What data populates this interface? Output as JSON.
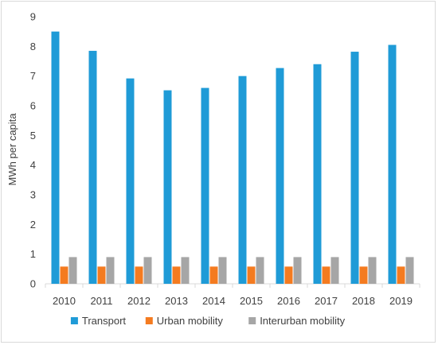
{
  "chart_data": {
    "type": "bar",
    "title": "",
    "xlabel": "",
    "ylabel": "MWh per capita",
    "ylim": [
      0,
      9
    ],
    "yticks": [
      "0",
      "1",
      "2",
      "3",
      "4",
      "5",
      "6",
      "7",
      "8",
      "9"
    ],
    "categories": [
      "2010",
      "2011",
      "2012",
      "2013",
      "2014",
      "2015",
      "2016",
      "2017",
      "2018",
      "2019"
    ],
    "grid": false,
    "legend_position": "bottom",
    "series": [
      {
        "name": "Transport",
        "color": "#1f9bd7",
        "values": [
          8.5,
          7.85,
          6.92,
          6.52,
          6.6,
          7.0,
          7.27,
          7.4,
          7.82,
          8.05
        ]
      },
      {
        "name": "Urban mobility",
        "color": "#f47b20",
        "values": [
          0.58,
          0.58,
          0.58,
          0.58,
          0.58,
          0.58,
          0.58,
          0.58,
          0.58,
          0.58
        ]
      },
      {
        "name": "Interurban mobility",
        "color": "#a6a6a6",
        "values": [
          0.9,
          0.9,
          0.9,
          0.9,
          0.9,
          0.9,
          0.9,
          0.9,
          0.9,
          0.9
        ]
      }
    ]
  }
}
